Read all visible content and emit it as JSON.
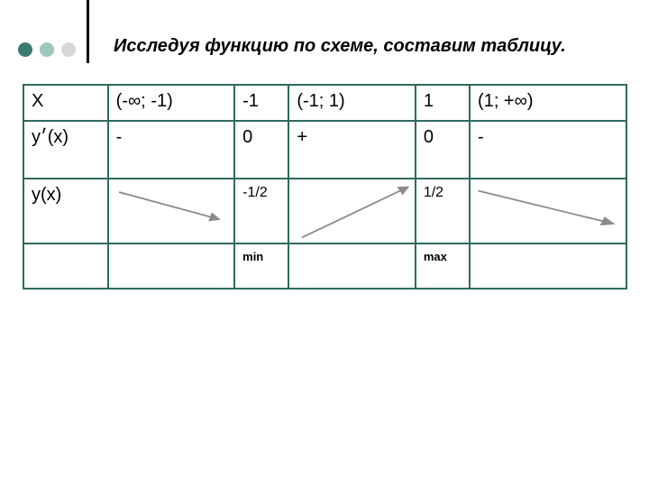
{
  "dots": {
    "colors": [
      "#3a7a6f",
      "#9cc8c0",
      "#d7d7d7"
    ]
  },
  "title": "Исследуя функцию по схеме, составим таблицу.",
  "table": {
    "border_color": "#2f6a5f",
    "col_widths_pct": [
      14,
      21,
      9,
      21,
      9,
      26
    ],
    "rows": {
      "x": {
        "label": "X",
        "cells": [
          "(-∞; -1)",
          "-1",
          "(-1; 1)",
          "1",
          "(1; +∞)"
        ]
      },
      "yp": {
        "label": "y׳(x)",
        "cells": [
          " -",
          "0",
          "  +",
          "0",
          " -"
        ]
      },
      "y": {
        "label": "y(x)",
        "cells": [
          "",
          "-1/2",
          "",
          "1/2",
          ""
        ]
      },
      "mm": {
        "label": "",
        "cells": [
          "",
          "min",
          "",
          "max",
          ""
        ]
      }
    }
  },
  "arrows": {
    "color": "#8a8a8a",
    "head_color": "#8a8a8a",
    "stroke_width": 1.5,
    "a1": {
      "x1_pct": 8,
      "y1_pct": 20,
      "x2_pct": 88,
      "y2_pct": 63
    },
    "a2": {
      "x1_pct": 10,
      "y1_pct": 92,
      "x2_pct": 95,
      "y2_pct": 12
    },
    "a3": {
      "x1_pct": 5,
      "y1_pct": 18,
      "x2_pct": 92,
      "y2_pct": 70
    }
  }
}
